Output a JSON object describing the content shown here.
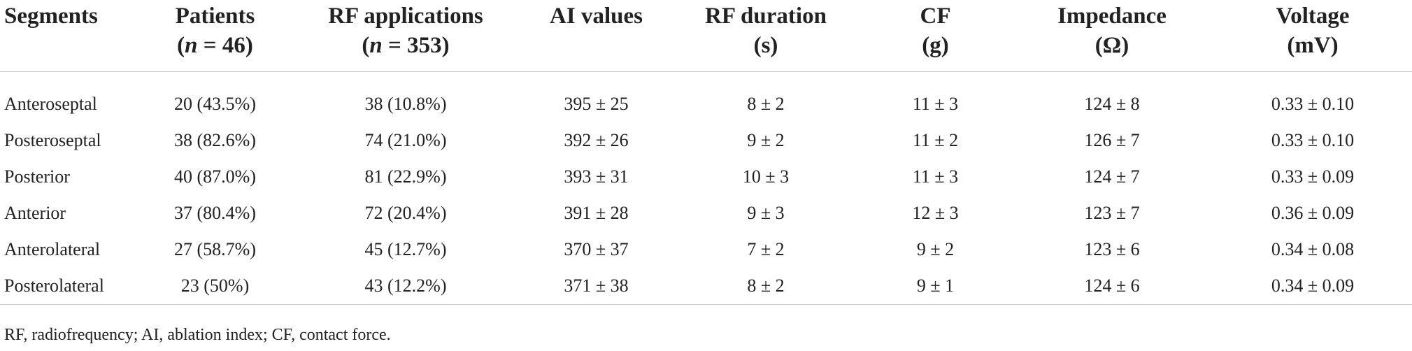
{
  "headers": [
    {
      "line1": "Segments",
      "line2": ""
    },
    {
      "line1": "Patients",
      "line2": "(n = 46)"
    },
    {
      "line1": "RF applications",
      "line2": "(n = 353)"
    },
    {
      "line1": "AI values",
      "line2": ""
    },
    {
      "line1": "RF duration",
      "line2": "(s)"
    },
    {
      "line1": "CF",
      "line2": "(g)"
    },
    {
      "line1": "Impedance",
      "line2": "(Ω)"
    },
    {
      "line1": "Voltage",
      "line2": "(mV)"
    }
  ],
  "rows": [
    [
      "Anteroseptal",
      "20 (43.5%)",
      "38 (10.8%)",
      "395 ± 25",
      "8 ± 2",
      "11 ± 3",
      "124 ± 8",
      "0.33 ± 0.10"
    ],
    [
      "Posteroseptal",
      "38 (82.6%)",
      "74 (21.0%)",
      "392 ± 26",
      "9 ± 2",
      "11 ± 2",
      "126 ± 7",
      "0.33 ± 0.10"
    ],
    [
      "Posterior",
      "40 (87.0%)",
      "81 (22.9%)",
      "393 ± 31",
      "10 ± 3",
      "11 ± 3",
      "124 ± 7",
      "0.33 ± 0.09"
    ],
    [
      "Anterior",
      "37 (80.4%)",
      "72 (20.4%)",
      "391 ± 28",
      "9 ± 3",
      "12 ± 3",
      "123 ± 7",
      "0.36 ± 0.09"
    ],
    [
      "Anterolateral",
      "27 (58.7%)",
      "45 (12.7%)",
      "370 ± 37",
      "7 ± 2",
      "9 ± 2",
      "123 ± 6",
      "0.34 ± 0.08"
    ],
    [
      "Posterolateral",
      "23 (50%)",
      "43 (12.2%)",
      "371 ± 38",
      "8 ± 2",
      "9 ± 1",
      "124 ± 6",
      "0.34 ± 0.09"
    ]
  ],
  "footnote": "RF, radiofrequency; AI, ablation index; CF, contact force."
}
